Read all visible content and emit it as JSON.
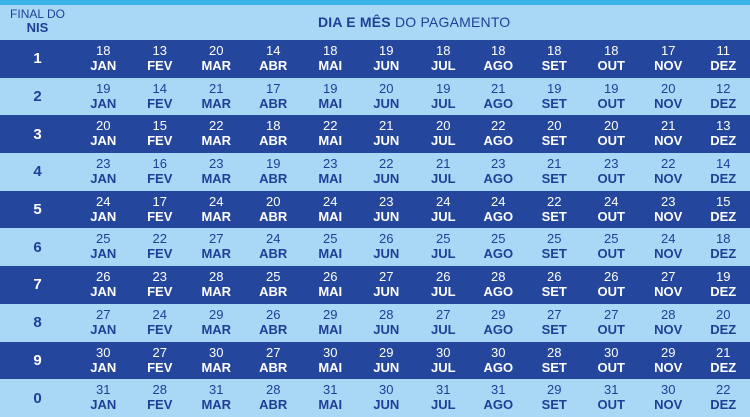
{
  "header": {
    "nis_line1": "FINAL DO",
    "nis_line2": "NIS",
    "title_bold": "DIA E MÊS",
    "title_rest": " DO PAGAMENTO"
  },
  "months": [
    "JAN",
    "FEV",
    "MAR",
    "ABR",
    "MAI",
    "JUN",
    "JUL",
    "AGO",
    "SET",
    "OUT",
    "NOV",
    "DEZ"
  ],
  "rows": [
    {
      "nis": "1",
      "days": [
        "18",
        "13",
        "20",
        "14",
        "18",
        "19",
        "18",
        "18",
        "18",
        "18",
        "17",
        "11"
      ]
    },
    {
      "nis": "2",
      "days": [
        "19",
        "14",
        "21",
        "17",
        "19",
        "20",
        "19",
        "21",
        "19",
        "19",
        "20",
        "12"
      ]
    },
    {
      "nis": "3",
      "days": [
        "20",
        "15",
        "22",
        "18",
        "22",
        "21",
        "20",
        "22",
        "20",
        "20",
        "21",
        "13"
      ]
    },
    {
      "nis": "4",
      "days": [
        "23",
        "16",
        "23",
        "19",
        "23",
        "22",
        "21",
        "23",
        "21",
        "23",
        "22",
        "14"
      ]
    },
    {
      "nis": "5",
      "days": [
        "24",
        "17",
        "24",
        "20",
        "24",
        "23",
        "24",
        "24",
        "22",
        "24",
        "23",
        "15"
      ]
    },
    {
      "nis": "6",
      "days": [
        "25",
        "22",
        "27",
        "24",
        "25",
        "26",
        "25",
        "25",
        "25",
        "25",
        "24",
        "18"
      ]
    },
    {
      "nis": "7",
      "days": [
        "26",
        "23",
        "28",
        "25",
        "26",
        "27",
        "26",
        "28",
        "26",
        "26",
        "27",
        "19"
      ]
    },
    {
      "nis": "8",
      "days": [
        "27",
        "24",
        "29",
        "26",
        "29",
        "28",
        "27",
        "29",
        "27",
        "27",
        "28",
        "20"
      ]
    },
    {
      "nis": "9",
      "days": [
        "30",
        "27",
        "30",
        "27",
        "30",
        "29",
        "30",
        "30",
        "28",
        "30",
        "29",
        "21"
      ]
    },
    {
      "nis": "0",
      "days": [
        "31",
        "28",
        "31",
        "28",
        "31",
        "30",
        "31",
        "31",
        "29",
        "31",
        "30",
        "22"
      ]
    }
  ]
}
